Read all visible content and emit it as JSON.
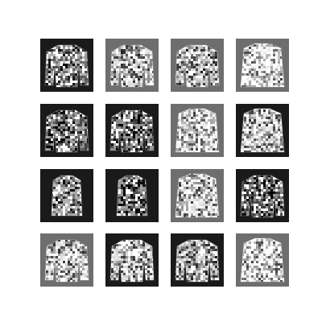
{
  "figure": {
    "rows": 4,
    "cols": 4,
    "colors": {
      "page_background": "#ffffff",
      "dark_tile_background": "#1a1a1a",
      "mid_tile_background": "#6e6e6e",
      "light_garment": "#f4f4f4"
    },
    "tiles": [
      {
        "row": 0,
        "col": 0,
        "bg": "dark",
        "garment": "sweater-long-sleeve",
        "brightness": 0.65
      },
      {
        "row": 0,
        "col": 1,
        "bg": "mid",
        "garment": "sweater-long-sleeve",
        "brightness": 0.85
      },
      {
        "row": 0,
        "col": 2,
        "bg": "mid",
        "garment": "sweater-long-sleeve",
        "brightness": 0.8
      },
      {
        "row": 0,
        "col": 3,
        "bg": "mid",
        "garment": "sweater-bright",
        "brightness": 0.97
      },
      {
        "row": 1,
        "col": 0,
        "bg": "dark",
        "garment": "sweater-long-sleeve",
        "brightness": 0.6
      },
      {
        "row": 1,
        "col": 1,
        "bg": "dark",
        "garment": "sweater-long-sleeve",
        "brightness": 0.55
      },
      {
        "row": 1,
        "col": 2,
        "bg": "mid",
        "garment": "sweater-bright",
        "brightness": 0.95
      },
      {
        "row": 1,
        "col": 3,
        "bg": "dark",
        "garment": "sweater-bright",
        "brightness": 0.88
      },
      {
        "row": 2,
        "col": 0,
        "bg": "dark",
        "garment": "shirt-narrow",
        "brightness": 0.7
      },
      {
        "row": 2,
        "col": 1,
        "bg": "dark",
        "garment": "shirt-narrow",
        "brightness": 0.6
      },
      {
        "row": 2,
        "col": 2,
        "bg": "mid",
        "garment": "sweater-bright",
        "brightness": 0.9
      },
      {
        "row": 2,
        "col": 3,
        "bg": "dark",
        "garment": "sweater-long-sleeve",
        "brightness": 0.55
      },
      {
        "row": 3,
        "col": 0,
        "bg": "mid",
        "garment": "sweater-long-sleeve",
        "brightness": 0.88
      },
      {
        "row": 3,
        "col": 1,
        "bg": "dark",
        "garment": "sweater-long-sleeve",
        "brightness": 0.85
      },
      {
        "row": 3,
        "col": 2,
        "bg": "dark",
        "garment": "sweater-long-sleeve",
        "brightness": 0.8
      },
      {
        "row": 3,
        "col": 3,
        "bg": "mid",
        "garment": "sweater-bright",
        "brightness": 0.95
      }
    ]
  }
}
